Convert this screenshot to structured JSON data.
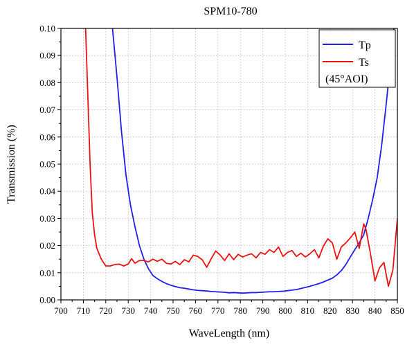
{
  "chart_data": {
    "type": "line",
    "title": "SPM10-780",
    "xlabel": "WaveLength (nm)",
    "ylabel": "Transmission (%)",
    "xlim": [
      700,
      850
    ],
    "ylim": [
      0,
      0.1
    ],
    "grid": true,
    "legend_position": "top-right",
    "xticks": [
      "700",
      "710",
      "720",
      "730",
      "740",
      "750",
      "760",
      "770",
      "780",
      "790",
      "800",
      "810",
      "820",
      "830",
      "840",
      "850"
    ],
    "yticks": [
      "0.00",
      "0.01",
      "0.02",
      "0.03",
      "0.04",
      "0.05",
      "0.06",
      "0.07",
      "0.08",
      "0.09",
      "0.10"
    ],
    "legend_note": "(45°AOI)",
    "series": [
      {
        "name": "Tp",
        "color": "#1f1fe8",
        "x": [
          723,
          725,
          727,
          729,
          731,
          733,
          735,
          737,
          739,
          741,
          743,
          745,
          747,
          749,
          751,
          753,
          755,
          757,
          759,
          761,
          763,
          765,
          767,
          769,
          771,
          773,
          775,
          777,
          779,
          781,
          783,
          785,
          787,
          789,
          791,
          793,
          795,
          797,
          799,
          801,
          803,
          805,
          807,
          809,
          811,
          813,
          815,
          817,
          819,
          821,
          823,
          825,
          827,
          829,
          831,
          833,
          835,
          837,
          839,
          841,
          843,
          845,
          847,
          848.5
        ],
        "y": [
          0.1,
          0.082,
          0.062,
          0.046,
          0.035,
          0.027,
          0.02,
          0.015,
          0.0115,
          0.009,
          0.0078,
          0.0068,
          0.006,
          0.0054,
          0.0049,
          0.0045,
          0.0043,
          0.004,
          0.0037,
          0.0035,
          0.0034,
          0.0033,
          0.0031,
          0.003,
          0.0029,
          0.0028,
          0.0026,
          0.0027,
          0.0026,
          0.0025,
          0.0026,
          0.0027,
          0.0027,
          0.0028,
          0.0029,
          0.003,
          0.003,
          0.0031,
          0.0032,
          0.0034,
          0.0036,
          0.0038,
          0.0042,
          0.0046,
          0.005,
          0.0055,
          0.006,
          0.0066,
          0.0073,
          0.008,
          0.0092,
          0.0108,
          0.013,
          0.0158,
          0.0185,
          0.021,
          0.024,
          0.03,
          0.037,
          0.045,
          0.057,
          0.072,
          0.088,
          0.1
        ]
      },
      {
        "name": "Ts",
        "color": "#ee1111",
        "x": [
          711,
          712,
          713,
          714,
          715,
          716,
          718,
          720,
          722,
          724,
          726,
          728,
          730,
          731.5,
          733,
          735,
          737,
          739,
          741,
          743,
          745,
          747,
          749,
          751,
          753,
          755,
          757,
          759,
          761,
          763,
          765,
          767,
          769,
          771,
          773,
          775,
          777,
          779,
          781,
          783,
          785,
          787,
          789,
          791,
          793,
          795,
          797,
          799,
          801,
          803,
          805,
          807,
          809,
          811,
          813,
          815,
          817,
          819,
          821,
          823,
          825,
          827,
          829,
          831,
          833,
          835,
          836,
          838,
          840,
          842,
          844,
          846,
          848,
          850
        ],
        "y": [
          0.1,
          0.075,
          0.05,
          0.032,
          0.024,
          0.019,
          0.015,
          0.0125,
          0.0125,
          0.013,
          0.0132,
          0.0125,
          0.0132,
          0.0152,
          0.0135,
          0.0145,
          0.0145,
          0.014,
          0.015,
          0.0142,
          0.015,
          0.0135,
          0.0132,
          0.0142,
          0.013,
          0.0148,
          0.014,
          0.0165,
          0.016,
          0.0148,
          0.012,
          0.0152,
          0.018,
          0.0165,
          0.0145,
          0.017,
          0.0148,
          0.0168,
          0.0158,
          0.0165,
          0.017,
          0.0155,
          0.0175,
          0.0168,
          0.0185,
          0.0175,
          0.0195,
          0.016,
          0.0175,
          0.0182,
          0.016,
          0.0172,
          0.0158,
          0.017,
          0.0185,
          0.0155,
          0.0198,
          0.0225,
          0.021,
          0.015,
          0.0195,
          0.021,
          0.0228,
          0.025,
          0.019,
          0.028,
          0.026,
          0.017,
          0.007,
          0.0118,
          0.0138,
          0.005,
          0.011,
          0.03
        ]
      }
    ]
  }
}
